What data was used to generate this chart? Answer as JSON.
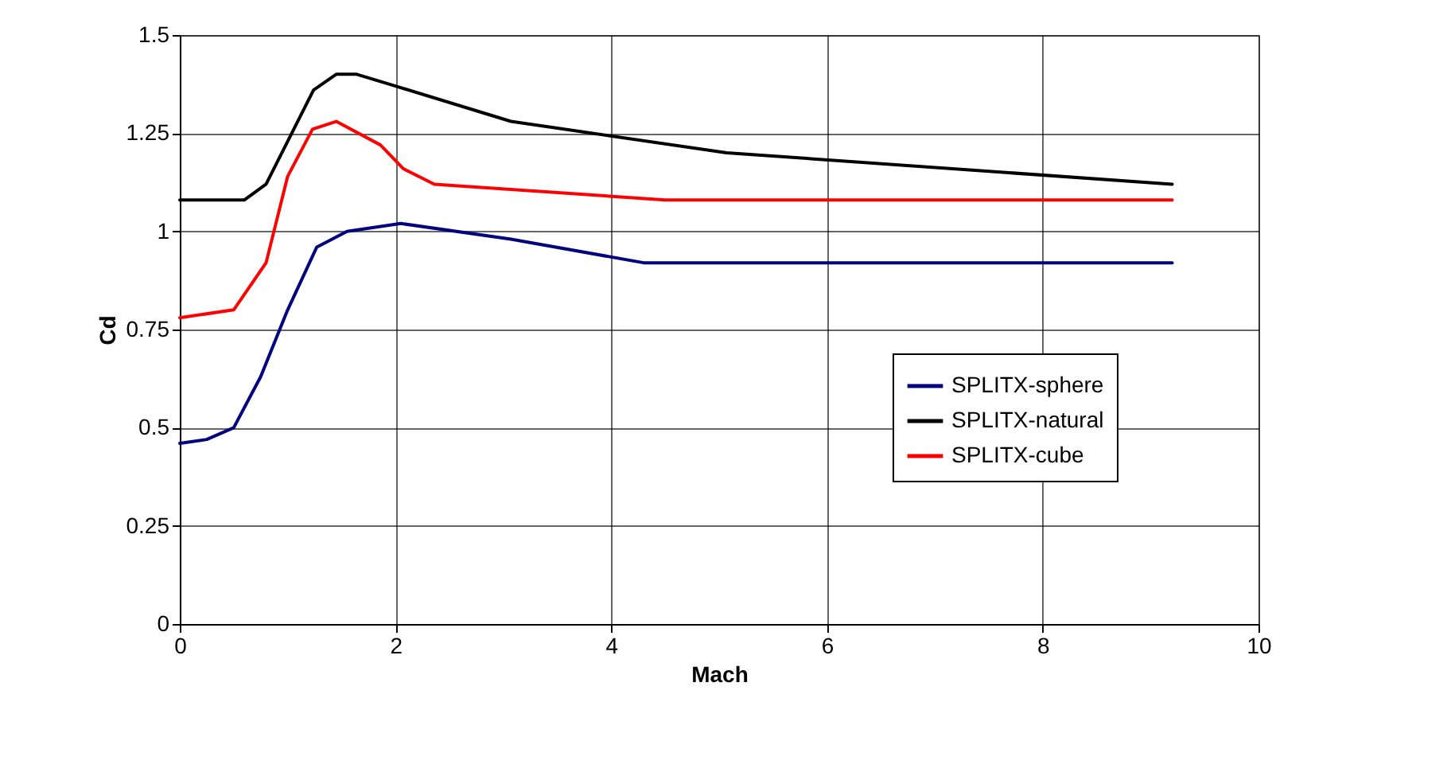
{
  "chart_data": {
    "type": "line",
    "xlabel": "Mach",
    "ylabel": "Cd",
    "xlim": [
      0,
      10
    ],
    "xticks": [
      0,
      2,
      4,
      6,
      8,
      10
    ],
    "ylim": [
      0,
      1.5
    ],
    "yticks": [
      0,
      0.25,
      0.5,
      0.75,
      1,
      1.25,
      1.5
    ],
    "grid": true,
    "legend": "right",
    "series": [
      {
        "name": "SPLITX-sphere",
        "color": "#000080",
        "x": [
          0,
          0.25,
          0.5,
          0.75,
          1.0,
          1.27,
          1.55,
          2.05,
          3.07,
          4.3,
          9.2
        ],
        "values": [
          0.46,
          0.47,
          0.5,
          0.63,
          0.8,
          0.96,
          1.0,
          1.02,
          0.98,
          0.92,
          0.92
        ]
      },
      {
        "name": "SPLITX-natural",
        "color": "#000000",
        "x": [
          0,
          0.6,
          0.8,
          1.24,
          1.45,
          1.64,
          2.0,
          3.07,
          5.07,
          9.2
        ],
        "values": [
          1.08,
          1.08,
          1.12,
          1.36,
          1.4,
          1.4,
          1.37,
          1.28,
          1.2,
          1.12
        ]
      },
      {
        "name": "SPLITX-cube",
        "color": "#ff0000",
        "x": [
          0,
          0.5,
          0.8,
          1.0,
          1.23,
          1.45,
          1.86,
          2.07,
          2.36,
          4.5,
          9.2
        ],
        "values": [
          0.78,
          0.8,
          0.92,
          1.14,
          1.26,
          1.28,
          1.22,
          1.16,
          1.12,
          1.08,
          1.08
        ]
      }
    ]
  }
}
